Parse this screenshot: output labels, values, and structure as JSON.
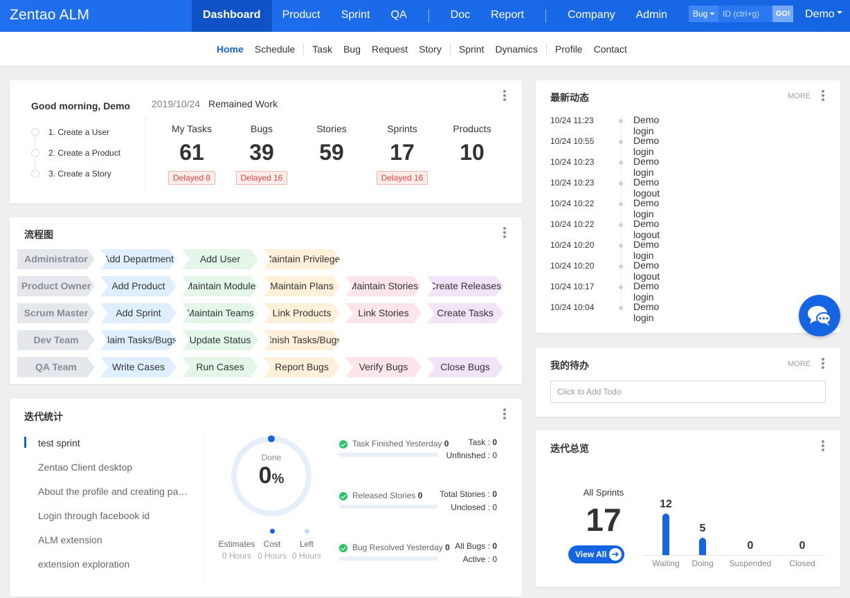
{
  "app": {
    "brand": "Zentao ALM"
  },
  "mainnav": {
    "items": [
      "Dashboard",
      "Product",
      "Sprint",
      "QA",
      "Doc",
      "Report",
      "Company",
      "Admin"
    ]
  },
  "search": {
    "type": "Bug",
    "placeholder": "ID (ctrl+g)",
    "go": "GO!"
  },
  "user": {
    "name": "Demo"
  },
  "subnav": {
    "items": [
      "Home",
      "Schedule",
      "Task",
      "Bug",
      "Request",
      "Story",
      "Sprint",
      "Dynamics",
      "Profile",
      "Contact"
    ]
  },
  "welcome": {
    "greeting": "Good morning, Demo",
    "date": "2019/10/24",
    "remained": "Remained Work",
    "steps": [
      "1. Create a User",
      "2. Create a Product",
      "3. Create a Story"
    ],
    "stats": [
      {
        "label": "My Tasks",
        "value": "61",
        "delay": "Delayed 8"
      },
      {
        "label": "Bugs",
        "value": "39",
        "delay": "Delayed 16"
      },
      {
        "label": "Stories",
        "value": "59",
        "delay": ""
      },
      {
        "label": "Sprints",
        "value": "17",
        "delay": "Delayed 16"
      },
      {
        "label": "Products",
        "value": "10",
        "delay": ""
      }
    ]
  },
  "flow": {
    "title": "流程图",
    "rows": [
      [
        "Administrator",
        "Add Department",
        "Add User",
        "Maintain Privileges",
        ""
      ],
      [
        "Product Owner",
        "Add Product",
        "Maintain Module",
        "Maintain Plans",
        "Maintain Stories",
        "Create Releases"
      ],
      [
        "Scrum Master",
        "Add Sprint",
        "Maintain Teams",
        "Link Products",
        "Link Stories",
        "Create Tasks"
      ],
      [
        "Dev Team",
        "Claim Tasks/Bugs",
        "Update Status",
        "Finish Tasks/Bugs",
        ""
      ],
      [
        "QA Team",
        "Write Cases",
        "Run Cases",
        "Report Bugs",
        "Verify Bugs",
        "Close Bugs"
      ]
    ]
  },
  "sprintstats": {
    "title": "迭代统计",
    "sprints": [
      "test sprint",
      "Zentao Client desktop",
      "About the profile and creating pages",
      "Login through facebook id",
      "ALM extension",
      "extension exploration"
    ],
    "done_label": "Done",
    "done_value": "0",
    "done_unit": "%",
    "estimates": {
      "label": "Estimates",
      "value": "0 Hours"
    },
    "cost": {
      "label": "Cost",
      "value": "0 Hours"
    },
    "left": {
      "label": "Left",
      "value": "0 Hours"
    },
    "metrics": [
      {
        "label": "Task Finished Yesterday",
        "value": "0",
        "r1": "Task : ",
        "v1": "0",
        "r2": "Unfinished : ",
        "v2": "0"
      },
      {
        "label": "Released Stories",
        "value": "0",
        "r1": "Total Stories : ",
        "v1": "0",
        "r2": "Unclosed : ",
        "v2": "0"
      },
      {
        "label": "Bug Resolved Yesterday",
        "value": "0",
        "r1": "All Bugs : ",
        "v1": "0",
        "r2": "Active : ",
        "v2": "0"
      }
    ]
  },
  "dynamics": {
    "title": "最新动态",
    "more": "MORE",
    "items": [
      {
        "time": "10/24 11:23",
        "action": "Demo login"
      },
      {
        "time": "10/24 10:55",
        "action": "Demo login"
      },
      {
        "time": "10/24 10:23",
        "action": "Demo login"
      },
      {
        "time": "10/24 10:23",
        "action": "Demo logout"
      },
      {
        "time": "10/24 10:22",
        "action": "Demo login"
      },
      {
        "time": "10/24 10:22",
        "action": "Demo logout"
      },
      {
        "time": "10/24 10:20",
        "action": "Demo login"
      },
      {
        "time": "10/24 10:20",
        "action": "Demo logout"
      },
      {
        "time": "10/24 10:17",
        "action": "Demo login"
      },
      {
        "time": "10/24 10:04",
        "action": "Demo login"
      }
    ]
  },
  "todo": {
    "title": "我的待办",
    "more": "MORE",
    "placeholder": "Click to Add Todo"
  },
  "overview": {
    "title": "迭代总览",
    "all_label": "All Sprints",
    "all_value": "17",
    "view_all": "View All",
    "bars": [
      {
        "label": "Waiting",
        "value": 12
      },
      {
        "label": "Doing",
        "value": 5
      },
      {
        "label": "Suspended",
        "value": 0
      },
      {
        "label": "Closed",
        "value": 0
      }
    ]
  },
  "colors": {
    "accent": "#1565e3",
    "delay": "#e8473d",
    "success": "#2bc46a"
  }
}
